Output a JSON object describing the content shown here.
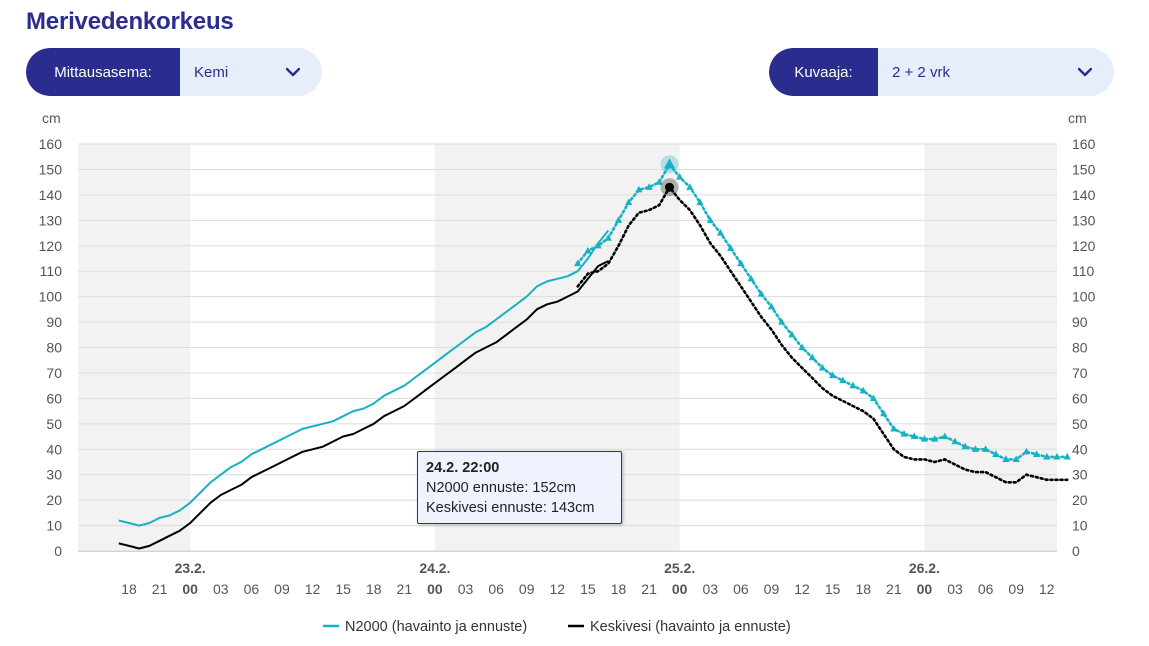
{
  "page": {
    "title": "Merivedenkorkeus"
  },
  "station_selector": {
    "label": "Mittausasema:",
    "value": "Kemi",
    "icon": "chevron-down-icon"
  },
  "graph_selector": {
    "label": "Kuvaaja:",
    "value": "2 + 2 vrk",
    "icon": "chevron-down-icon"
  },
  "tooltip": {
    "time": "24.2. 22:00",
    "line1": "N2000 ennuste: 152cm",
    "line2": "Keskivesi ennuste: 143cm"
  },
  "colors": {
    "accent": "#2b2d8e",
    "n2000": "#17b1c4",
    "keskivesi": "#000000",
    "night_band": "#f2f2f2"
  },
  "chart_data": {
    "type": "line",
    "xlabel": "",
    "ylabel_left": "cm",
    "ylabel_right": "cm",
    "ylim": [
      0,
      160
    ],
    "yticks": [
      0,
      10,
      20,
      30,
      40,
      50,
      60,
      70,
      80,
      90,
      100,
      110,
      120,
      130,
      140,
      150,
      160
    ],
    "x_unit": "hours from 22.2. 18:00",
    "xlim": [
      -5,
      91
    ],
    "x_tick_labels": [
      {
        "h": 0,
        "label": "18"
      },
      {
        "h": 3,
        "label": "21"
      },
      {
        "h": 6,
        "label": "00",
        "bold": true
      },
      {
        "h": 9,
        "label": "03"
      },
      {
        "h": 12,
        "label": "06"
      },
      {
        "h": 15,
        "label": "09"
      },
      {
        "h": 18,
        "label": "12"
      },
      {
        "h": 21,
        "label": "15"
      },
      {
        "h": 24,
        "label": "18"
      },
      {
        "h": 27,
        "label": "21"
      },
      {
        "h": 30,
        "label": "00",
        "bold": true
      },
      {
        "h": 33,
        "label": "03"
      },
      {
        "h": 36,
        "label": "06"
      },
      {
        "h": 39,
        "label": "09"
      },
      {
        "h": 42,
        "label": "12"
      },
      {
        "h": 45,
        "label": "15"
      },
      {
        "h": 48,
        "label": "18"
      },
      {
        "h": 51,
        "label": "21"
      },
      {
        "h": 54,
        "label": "00",
        "bold": true
      },
      {
        "h": 57,
        "label": "03"
      },
      {
        "h": 60,
        "label": "06"
      },
      {
        "h": 63,
        "label": "09"
      },
      {
        "h": 66,
        "label": "12"
      },
      {
        "h": 69,
        "label": "15"
      },
      {
        "h": 72,
        "label": "18"
      },
      {
        "h": 75,
        "label": "21"
      },
      {
        "h": 78,
        "label": "00",
        "bold": true
      },
      {
        "h": 81,
        "label": "03"
      },
      {
        "h": 84,
        "label": "06"
      },
      {
        "h": 87,
        "label": "09"
      },
      {
        "h": 90,
        "label": "12"
      }
    ],
    "date_labels": [
      {
        "h": 6,
        "label": "23.2."
      },
      {
        "h": 30,
        "label": "24.2."
      },
      {
        "h": 54,
        "label": "25.2."
      },
      {
        "h": 78,
        "label": "26.2."
      }
    ],
    "shaded_bands": [
      [
        -5,
        6
      ],
      [
        30,
        54
      ],
      [
        78,
        91
      ]
    ],
    "highlight_h": 53,
    "legend": {
      "placement": "bottom-center"
    },
    "series": [
      {
        "name": "N2000 (havainto ja ennuste)",
        "kind": "observation",
        "points": [
          [
            -1,
            12
          ],
          [
            0,
            11
          ],
          [
            1,
            10
          ],
          [
            2,
            11
          ],
          [
            3,
            13
          ],
          [
            4,
            14
          ],
          [
            5,
            16
          ],
          [
            6,
            19
          ],
          [
            7,
            23
          ],
          [
            8,
            27
          ],
          [
            9,
            30
          ],
          [
            10,
            33
          ],
          [
            11,
            35
          ],
          [
            12,
            38
          ],
          [
            13,
            40
          ],
          [
            14,
            42
          ],
          [
            15,
            44
          ],
          [
            16,
            46
          ],
          [
            17,
            48
          ],
          [
            18,
            49
          ],
          [
            19,
            50
          ],
          [
            20,
            51
          ],
          [
            21,
            53
          ],
          [
            22,
            55
          ],
          [
            23,
            56
          ],
          [
            24,
            58
          ],
          [
            25,
            61
          ],
          [
            26,
            63
          ],
          [
            27,
            65
          ],
          [
            28,
            68
          ],
          [
            29,
            71
          ],
          [
            30,
            74
          ],
          [
            31,
            77
          ],
          [
            32,
            80
          ],
          [
            33,
            83
          ],
          [
            34,
            86
          ],
          [
            35,
            88
          ],
          [
            36,
            91
          ],
          [
            37,
            94
          ],
          [
            38,
            97
          ],
          [
            39,
            100
          ],
          [
            40,
            104
          ],
          [
            41,
            106
          ],
          [
            42,
            107
          ],
          [
            43,
            108
          ],
          [
            44,
            110
          ],
          [
            45,
            115
          ],
          [
            46,
            121
          ],
          [
            47,
            126
          ]
        ]
      },
      {
        "name": "N2000 (havainto ja ennuste)",
        "kind": "forecast",
        "points": [
          [
            44,
            113
          ],
          [
            45,
            118
          ],
          [
            46,
            120
          ],
          [
            47,
            123
          ],
          [
            48,
            130
          ],
          [
            49,
            137
          ],
          [
            50,
            142
          ],
          [
            51,
            143
          ],
          [
            52,
            145
          ],
          [
            53,
            152
          ],
          [
            54,
            147
          ],
          [
            55,
            143
          ],
          [
            56,
            137
          ],
          [
            57,
            130
          ],
          [
            58,
            125
          ],
          [
            59,
            119
          ],
          [
            60,
            113
          ],
          [
            61,
            107
          ],
          [
            62,
            101
          ],
          [
            63,
            96
          ],
          [
            64,
            90
          ],
          [
            65,
            85
          ],
          [
            66,
            80
          ],
          [
            67,
            76
          ],
          [
            68,
            72
          ],
          [
            69,
            69
          ],
          [
            70,
            67
          ],
          [
            71,
            65
          ],
          [
            72,
            63
          ],
          [
            73,
            60
          ],
          [
            74,
            54
          ],
          [
            75,
            48
          ],
          [
            76,
            46
          ],
          [
            77,
            45
          ],
          [
            78,
            44
          ],
          [
            79,
            44
          ],
          [
            80,
            45
          ],
          [
            81,
            43
          ],
          [
            82,
            41
          ],
          [
            83,
            40
          ],
          [
            84,
            40
          ],
          [
            85,
            38
          ],
          [
            86,
            36
          ],
          [
            87,
            36
          ],
          [
            88,
            39
          ],
          [
            89,
            38
          ],
          [
            90,
            37
          ],
          [
            91,
            37
          ],
          [
            92,
            37
          ]
        ]
      },
      {
        "name": "Keskivesi (havainto ja ennuste)",
        "kind": "observation",
        "points": [
          [
            -1,
            3
          ],
          [
            0,
            2
          ],
          [
            1,
            1
          ],
          [
            2,
            2
          ],
          [
            3,
            4
          ],
          [
            4,
            6
          ],
          [
            5,
            8
          ],
          [
            6,
            11
          ],
          [
            7,
            15
          ],
          [
            8,
            19
          ],
          [
            9,
            22
          ],
          [
            10,
            24
          ],
          [
            11,
            26
          ],
          [
            12,
            29
          ],
          [
            13,
            31
          ],
          [
            14,
            33
          ],
          [
            15,
            35
          ],
          [
            16,
            37
          ],
          [
            17,
            39
          ],
          [
            18,
            40
          ],
          [
            19,
            41
          ],
          [
            20,
            43
          ],
          [
            21,
            45
          ],
          [
            22,
            46
          ],
          [
            23,
            48
          ],
          [
            24,
            50
          ],
          [
            25,
            53
          ],
          [
            26,
            55
          ],
          [
            27,
            57
          ],
          [
            28,
            60
          ],
          [
            29,
            63
          ],
          [
            30,
            66
          ],
          [
            31,
            69
          ],
          [
            32,
            72
          ],
          [
            33,
            75
          ],
          [
            34,
            78
          ],
          [
            35,
            80
          ],
          [
            36,
            82
          ],
          [
            37,
            85
          ],
          [
            38,
            88
          ],
          [
            39,
            91
          ],
          [
            40,
            95
          ],
          [
            41,
            97
          ],
          [
            42,
            98
          ],
          [
            43,
            100
          ],
          [
            44,
            102
          ],
          [
            45,
            107
          ],
          [
            46,
            112
          ],
          [
            47,
            114
          ]
        ]
      },
      {
        "name": "Keskivesi (havainto ja ennuste)",
        "kind": "forecast",
        "points": [
          [
            44,
            104
          ],
          [
            45,
            109
          ],
          [
            46,
            110
          ],
          [
            47,
            113
          ],
          [
            48,
            120
          ],
          [
            49,
            128
          ],
          [
            50,
            133
          ],
          [
            51,
            134
          ],
          [
            52,
            136
          ],
          [
            53,
            143
          ],
          [
            54,
            138
          ],
          [
            55,
            134
          ],
          [
            56,
            128
          ],
          [
            57,
            121
          ],
          [
            58,
            116
          ],
          [
            59,
            110
          ],
          [
            60,
            104
          ],
          [
            61,
            98
          ],
          [
            62,
            92
          ],
          [
            63,
            87
          ],
          [
            64,
            81
          ],
          [
            65,
            76
          ],
          [
            66,
            72
          ],
          [
            67,
            68
          ],
          [
            68,
            64
          ],
          [
            69,
            61
          ],
          [
            70,
            59
          ],
          [
            71,
            57
          ],
          [
            72,
            55
          ],
          [
            73,
            52
          ],
          [
            74,
            46
          ],
          [
            75,
            40
          ],
          [
            76,
            37
          ],
          [
            77,
            36
          ],
          [
            78,
            36
          ],
          [
            79,
            35
          ],
          [
            80,
            36
          ],
          [
            81,
            34
          ],
          [
            82,
            32
          ],
          [
            83,
            31
          ],
          [
            84,
            31
          ],
          [
            85,
            29
          ],
          [
            86,
            27
          ],
          [
            87,
            27
          ],
          [
            88,
            30
          ],
          [
            89,
            29
          ],
          [
            90,
            28
          ],
          [
            91,
            28
          ],
          [
            92,
            28
          ]
        ]
      }
    ]
  }
}
